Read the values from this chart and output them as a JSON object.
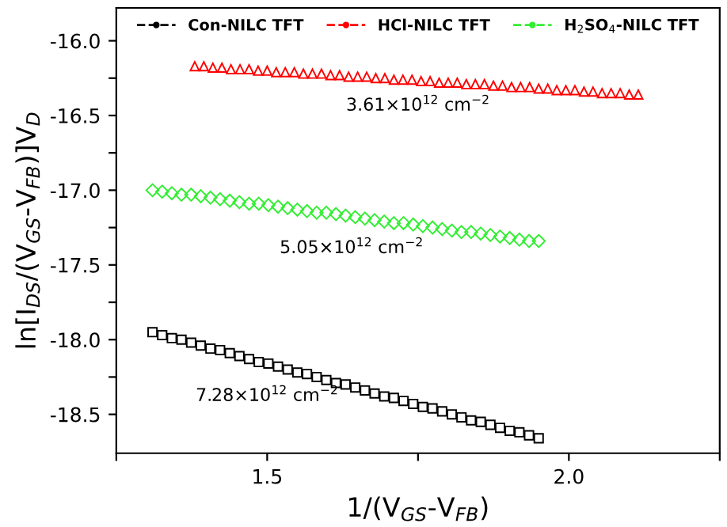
{
  "chart_data": {
    "type": "scatter",
    "xlabel": "1/(V$_{GS}$-V$_{FB}$)",
    "ylabel": "ln[I$_{DS}$/(V$_{GS}$-V$_{FB}$)]V$_{D}$",
    "xlim": [
      1.25,
      2.25
    ],
    "ylim": [
      -18.76,
      -15.78
    ],
    "xticks": [
      {
        "value": 1.25,
        "label": null
      },
      {
        "value": 1.5,
        "label": "1.5"
      },
      {
        "value": 1.75,
        "label": null
      },
      {
        "value": 2.0,
        "label": "2.0"
      },
      {
        "value": 2.25,
        "label": null
      }
    ],
    "yticks": [
      {
        "value": -16.0,
        "label": "-16.0"
      },
      {
        "value": -16.25,
        "label": null
      },
      {
        "value": -16.5,
        "label": "-16.5"
      },
      {
        "value": -16.75,
        "label": null
      },
      {
        "value": -17.0,
        "label": "-17.0"
      },
      {
        "value": -17.25,
        "label": null
      },
      {
        "value": -17.5,
        "label": "-17.5"
      },
      {
        "value": -17.75,
        "label": null
      },
      {
        "value": -18.0,
        "label": "-18.0"
      },
      {
        "value": -18.25,
        "label": null
      },
      {
        "value": -18.5,
        "label": "-18.5"
      }
    ],
    "grid": false,
    "legend": "top",
    "series": [
      {
        "name": "Con-NILC TFT",
        "color": "#000000",
        "marker": "square",
        "x": [
          1.31,
          1.326,
          1.342,
          1.358,
          1.374,
          1.39,
          1.406,
          1.422,
          1.438,
          1.454,
          1.47,
          1.486,
          1.502,
          1.518,
          1.534,
          1.55,
          1.566,
          1.582,
          1.598,
          1.614,
          1.63,
          1.646,
          1.662,
          1.678,
          1.694,
          1.71,
          1.726,
          1.742,
          1.758,
          1.774,
          1.79,
          1.806,
          1.822,
          1.838,
          1.854,
          1.87,
          1.886,
          1.902,
          1.918,
          1.934,
          1.95
        ],
        "values": [
          -17.95,
          -17.97,
          -17.99,
          -18.0,
          -18.02,
          -18.04,
          -18.06,
          -18.07,
          -18.09,
          -18.11,
          -18.13,
          -18.15,
          -18.16,
          -18.18,
          -18.2,
          -18.22,
          -18.23,
          -18.25,
          -18.27,
          -18.29,
          -18.3,
          -18.32,
          -18.34,
          -18.36,
          -18.38,
          -18.39,
          -18.41,
          -18.43,
          -18.45,
          -18.46,
          -18.48,
          -18.5,
          -18.52,
          -18.54,
          -18.55,
          -18.57,
          -18.59,
          -18.61,
          -18.62,
          -18.64,
          -18.66
        ]
      },
      {
        "name": "HCl-NILC TFT",
        "color": "#ff0000",
        "marker": "triangle",
        "x": [
          1.38,
          1.395,
          1.41,
          1.425,
          1.44,
          1.455,
          1.47,
          1.485,
          1.5,
          1.515,
          1.53,
          1.545,
          1.56,
          1.575,
          1.59,
          1.605,
          1.62,
          1.635,
          1.65,
          1.665,
          1.68,
          1.695,
          1.71,
          1.725,
          1.74,
          1.755,
          1.77,
          1.785,
          1.8,
          1.815,
          1.83,
          1.845,
          1.86,
          1.875,
          1.89,
          1.905,
          1.92,
          1.935,
          1.95,
          1.965,
          1.98,
          1.995,
          2.01,
          2.025,
          2.04,
          2.055,
          2.07,
          2.085,
          2.1,
          2.115
        ],
        "values": [
          -16.17,
          -16.17,
          -16.18,
          -16.18,
          -16.19,
          -16.19,
          -16.19,
          -16.2,
          -16.2,
          -16.21,
          -16.21,
          -16.21,
          -16.22,
          -16.22,
          -16.22,
          -16.23,
          -16.23,
          -16.24,
          -16.24,
          -16.24,
          -16.25,
          -16.25,
          -16.26,
          -16.26,
          -16.26,
          -16.27,
          -16.27,
          -16.28,
          -16.28,
          -16.28,
          -16.29,
          -16.29,
          -16.29,
          -16.3,
          -16.3,
          -16.31,
          -16.31,
          -16.31,
          -16.32,
          -16.32,
          -16.33,
          -16.33,
          -16.33,
          -16.34,
          -16.34,
          -16.35,
          -16.35,
          -16.35,
          -16.36,
          -16.36
        ]
      },
      {
        "name": "H$_{2}$SO$_{4}$-NILC TFT",
        "color": "#33ee33",
        "marker": "diamond",
        "x": [
          1.31,
          1.326,
          1.342,
          1.358,
          1.374,
          1.39,
          1.406,
          1.422,
          1.438,
          1.454,
          1.47,
          1.486,
          1.502,
          1.518,
          1.534,
          1.55,
          1.566,
          1.582,
          1.598,
          1.614,
          1.63,
          1.646,
          1.662,
          1.678,
          1.694,
          1.71,
          1.726,
          1.742,
          1.758,
          1.774,
          1.79,
          1.806,
          1.822,
          1.838,
          1.854,
          1.87,
          1.886,
          1.902,
          1.918,
          1.934,
          1.95
        ],
        "values": [
          -17.0,
          -17.01,
          -17.02,
          -17.03,
          -17.03,
          -17.04,
          -17.05,
          -17.06,
          -17.07,
          -17.08,
          -17.09,
          -17.09,
          -17.1,
          -17.11,
          -17.12,
          -17.13,
          -17.14,
          -17.15,
          -17.15,
          -17.16,
          -17.17,
          -17.18,
          -17.19,
          -17.2,
          -17.21,
          -17.22,
          -17.22,
          -17.23,
          -17.24,
          -17.25,
          -17.26,
          -17.27,
          -17.28,
          -17.28,
          -17.29,
          -17.3,
          -17.31,
          -17.32,
          -17.33,
          -17.34,
          -17.34
        ]
      }
    ],
    "annotations": [
      "3.61×10$^{12}$ cm$^{−2}$",
      "5.05×10$^{12}$ cm$^{−2}$",
      "7.28×10$^{12}$ cm$^{−2}$"
    ]
  }
}
